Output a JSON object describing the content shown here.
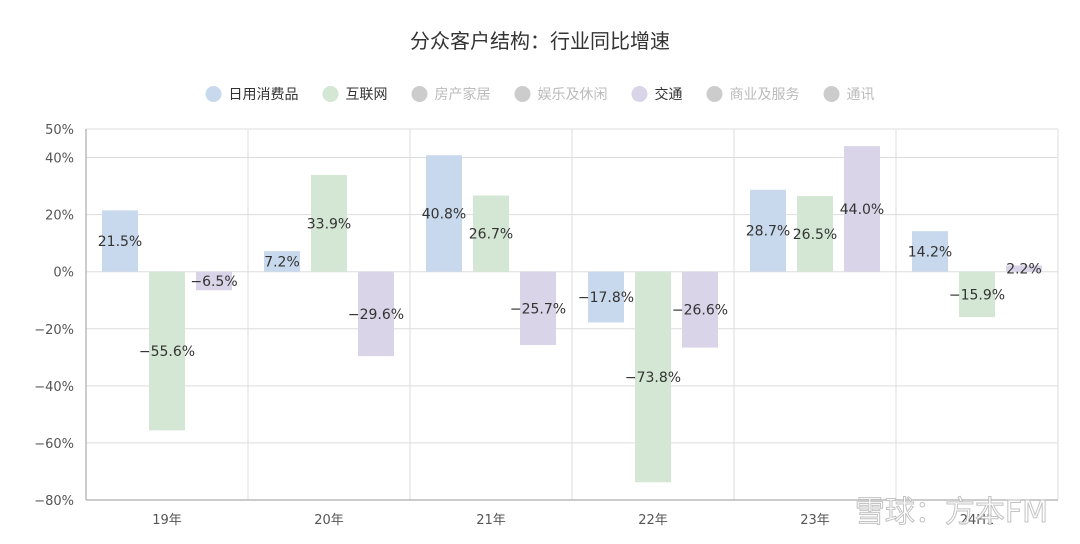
{
  "chart_data": {
    "type": "bar",
    "title": "分众客户结构：行业同比增速",
    "categories": [
      "19年",
      "20年",
      "21年",
      "22年",
      "23年",
      "24H1"
    ],
    "legend": [
      {
        "name": "日用消费品",
        "color": "#c9d9ed",
        "active": true
      },
      {
        "name": "互联网",
        "color": "#d3e7d4",
        "active": true
      },
      {
        "name": "房产家居",
        "color": "#cccccc",
        "active": false
      },
      {
        "name": "娱乐及休闲",
        "color": "#cccccc",
        "active": false
      },
      {
        "name": "交通",
        "color": "#d9d4e8",
        "active": true
      },
      {
        "name": "商业及服务",
        "color": "#cccccc",
        "active": false
      },
      {
        "name": "通讯",
        "color": "#cccccc",
        "active": false
      }
    ],
    "series": [
      {
        "name": "日用消费品",
        "color": "#c9d9ed",
        "values": [
          21.5,
          7.2,
          40.8,
          -17.8,
          28.7,
          14.2
        ],
        "labels": [
          "21.5%",
          "7.2%",
          "40.8%",
          "−17.8%",
          "28.7%",
          "14.2%"
        ]
      },
      {
        "name": "互联网",
        "color": "#d3e7d4",
        "values": [
          -55.6,
          33.9,
          26.7,
          -73.8,
          26.5,
          -15.9
        ],
        "labels": [
          "−55.6%",
          "33.9%",
          "26.7%",
          "−73.8%",
          "26.5%",
          "−15.9%"
        ]
      },
      {
        "name": "交通",
        "color": "#d9d4e8",
        "values": [
          -6.5,
          -29.6,
          -25.7,
          -26.6,
          44.0,
          2.2
        ],
        "labels": [
          "−6.5%",
          "−29.6%",
          "−25.7%",
          "−26.6%",
          "44.0%",
          "2.2%"
        ]
      }
    ],
    "y_ticks": [
      {
        "value": 50,
        "label": "50%"
      },
      {
        "value": 40,
        "label": "40%"
      },
      {
        "value": 20,
        "label": "20%"
      },
      {
        "value": 0,
        "label": "0%"
      },
      {
        "value": -20,
        "label": "−20%"
      },
      {
        "value": -40,
        "label": "−40%"
      },
      {
        "value": -60,
        "label": "−60%"
      },
      {
        "value": -80,
        "label": "−80%"
      }
    ],
    "ylim": [
      -80,
      50
    ],
    "grid": true,
    "legend_position": "top-center",
    "label_color": "#333333",
    "inactive_text_color": "#bbbbbb",
    "grid_color": "#dddddd",
    "axis_color": "#999999"
  },
  "watermark": "雪球：方本FM"
}
